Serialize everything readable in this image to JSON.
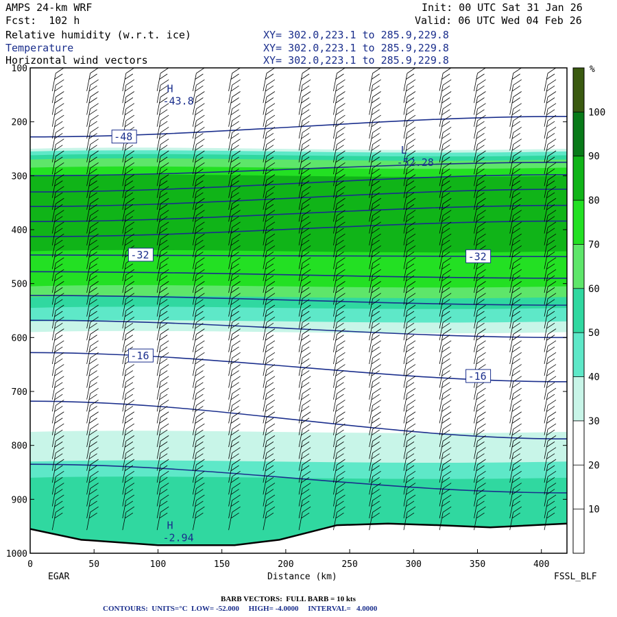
{
  "header": {
    "model": "AMPS 24-km WRF",
    "forecast": "Fcst:  102 h",
    "init": "Init: 00 UTC Sat 31 Jan 26",
    "valid": "Valid: 06 UTC Wed 04 Feb 26",
    "field1": "Relative humidity (w.r.t. ice)",
    "field2": "Temperature",
    "field3": "Horizontal wind vectors",
    "xy1": "XY= 302.0,223.1 to 285.9,229.8",
    "xy2": "XY= 302.0,223.1 to 285.9,229.8",
    "xy3": "XY= 302.0,223.1 to 285.9,229.8"
  },
  "footer": {
    "left_station": "EGAR",
    "right_station": "FSSL_BLF",
    "barb_note": "BARB VECTORS:  FULL BARB = 10 kts",
    "contour_note": "CONTOURS:  UNITS=°C  LOW= -52.000     HIGH= -4.0000     INTERVAL=   4.0000"
  },
  "colors": {
    "rh_10_20": "#ffffff",
    "rh_20_30": "#ffffff",
    "rh_30_40": "#c8f5e8",
    "rh_40_50": "#5ee8c8",
    "rh_50_60": "#30d8a0",
    "rh_60_70": "#5ee66a",
    "rh_70_80": "#23e023",
    "rh_80_90": "#10b418",
    "rh_90_100": "#087a18",
    "rh_100": "#3a5a10",
    "temperature_contour": "#1a2e8c",
    "barb": "#000000"
  },
  "chart_data": {
    "type": "heatmap",
    "title": "",
    "xlabel": "Distance (km)",
    "ylabel": "",
    "xlim": [
      0,
      420
    ],
    "ylim": [
      1000,
      100
    ],
    "x_ticks": [
      0,
      50,
      100,
      150,
      200,
      250,
      300,
      350,
      400
    ],
    "y_ticks": [
      100,
      200,
      300,
      400,
      500,
      600,
      700,
      800,
      900,
      1000
    ],
    "colorbar": {
      "unit": "%",
      "levels": [
        10,
        20,
        30,
        40,
        50,
        60,
        70,
        80,
        90,
        100
      ],
      "colors": [
        "#ffffff",
        "#ffffff",
        "#ffffff",
        "#c8f5e8",
        "#5ee8c8",
        "#30d8a0",
        "#5ee66a",
        "#23e023",
        "#10b418",
        "#087a18",
        "#3a5a10"
      ]
    },
    "rh_layers": [
      {
        "level": 30,
        "top": 250,
        "bottom": 590
      },
      {
        "level": 40,
        "top": 255,
        "bottom": 570
      },
      {
        "level": 50,
        "top": 262,
        "bottom": 545
      },
      {
        "level": 60,
        "top": 270,
        "bottom": 525
      },
      {
        "level": 70,
        "top": 285,
        "bottom": 505
      },
      {
        "level": 80,
        "top": 300,
        "bottom": 440
      },
      {
        "level": 30,
        "top": 775,
        "bottom": 990
      },
      {
        "level": 40,
        "top": 830,
        "bottom": 990
      },
      {
        "level": 50,
        "top": 860,
        "bottom": 985
      }
    ],
    "temperature_labels": [
      {
        "text": "-48",
        "x": 65,
        "p": 228
      },
      {
        "text": "-32",
        "x": 78,
        "p": 447
      },
      {
        "text": "-32",
        "x": 342,
        "p": 450
      },
      {
        "text": "-16",
        "x": 78,
        "p": 634
      },
      {
        "text": "-16",
        "x": 342,
        "p": 672
      }
    ],
    "temperature_contours": [
      {
        "p_left": 228,
        "p_right": 190
      },
      {
        "p_left": 300,
        "p_right": 275
      },
      {
        "p_left": 330,
        "p_right": 298
      },
      {
        "p_left": 357,
        "p_right": 325
      },
      {
        "p_left": 385,
        "p_right": 355
      },
      {
        "p_left": 413,
        "p_right": 384
      },
      {
        "p_left": 447,
        "p_right": 450
      },
      {
        "p_left": 478,
        "p_right": 490
      },
      {
        "p_left": 522,
        "p_right": 540
      },
      {
        "p_left": 568,
        "p_right": 600
      },
      {
        "p_left": 628,
        "p_right": 682
      },
      {
        "p_left": 718,
        "p_right": 788
      },
      {
        "p_left": 835,
        "p_right": 888
      }
    ],
    "extrema": [
      {
        "type": "H",
        "value": "-43.8",
        "x": 107,
        "p": 150
      },
      {
        "type": "L",
        "value": "-52.28",
        "x": 290,
        "p": 264
      },
      {
        "type": "H",
        "value": "-2.94",
        "x": 107,
        "p": 960
      }
    ],
    "barb_columns_x": [
      20,
      47,
      75,
      102,
      130,
      158,
      185,
      213,
      240,
      268,
      295,
      323,
      350,
      378,
      405
    ],
    "terrain": [
      {
        "x": 0,
        "p": 955
      },
      {
        "x": 40,
        "p": 975
      },
      {
        "x": 100,
        "p": 985
      },
      {
        "x": 160,
        "p": 985
      },
      {
        "x": 195,
        "p": 975
      },
      {
        "x": 220,
        "p": 960
      },
      {
        "x": 240,
        "p": 948
      },
      {
        "x": 280,
        "p": 945
      },
      {
        "x": 320,
        "p": 948
      },
      {
        "x": 360,
        "p": 952
      },
      {
        "x": 420,
        "p": 945
      }
    ]
  }
}
